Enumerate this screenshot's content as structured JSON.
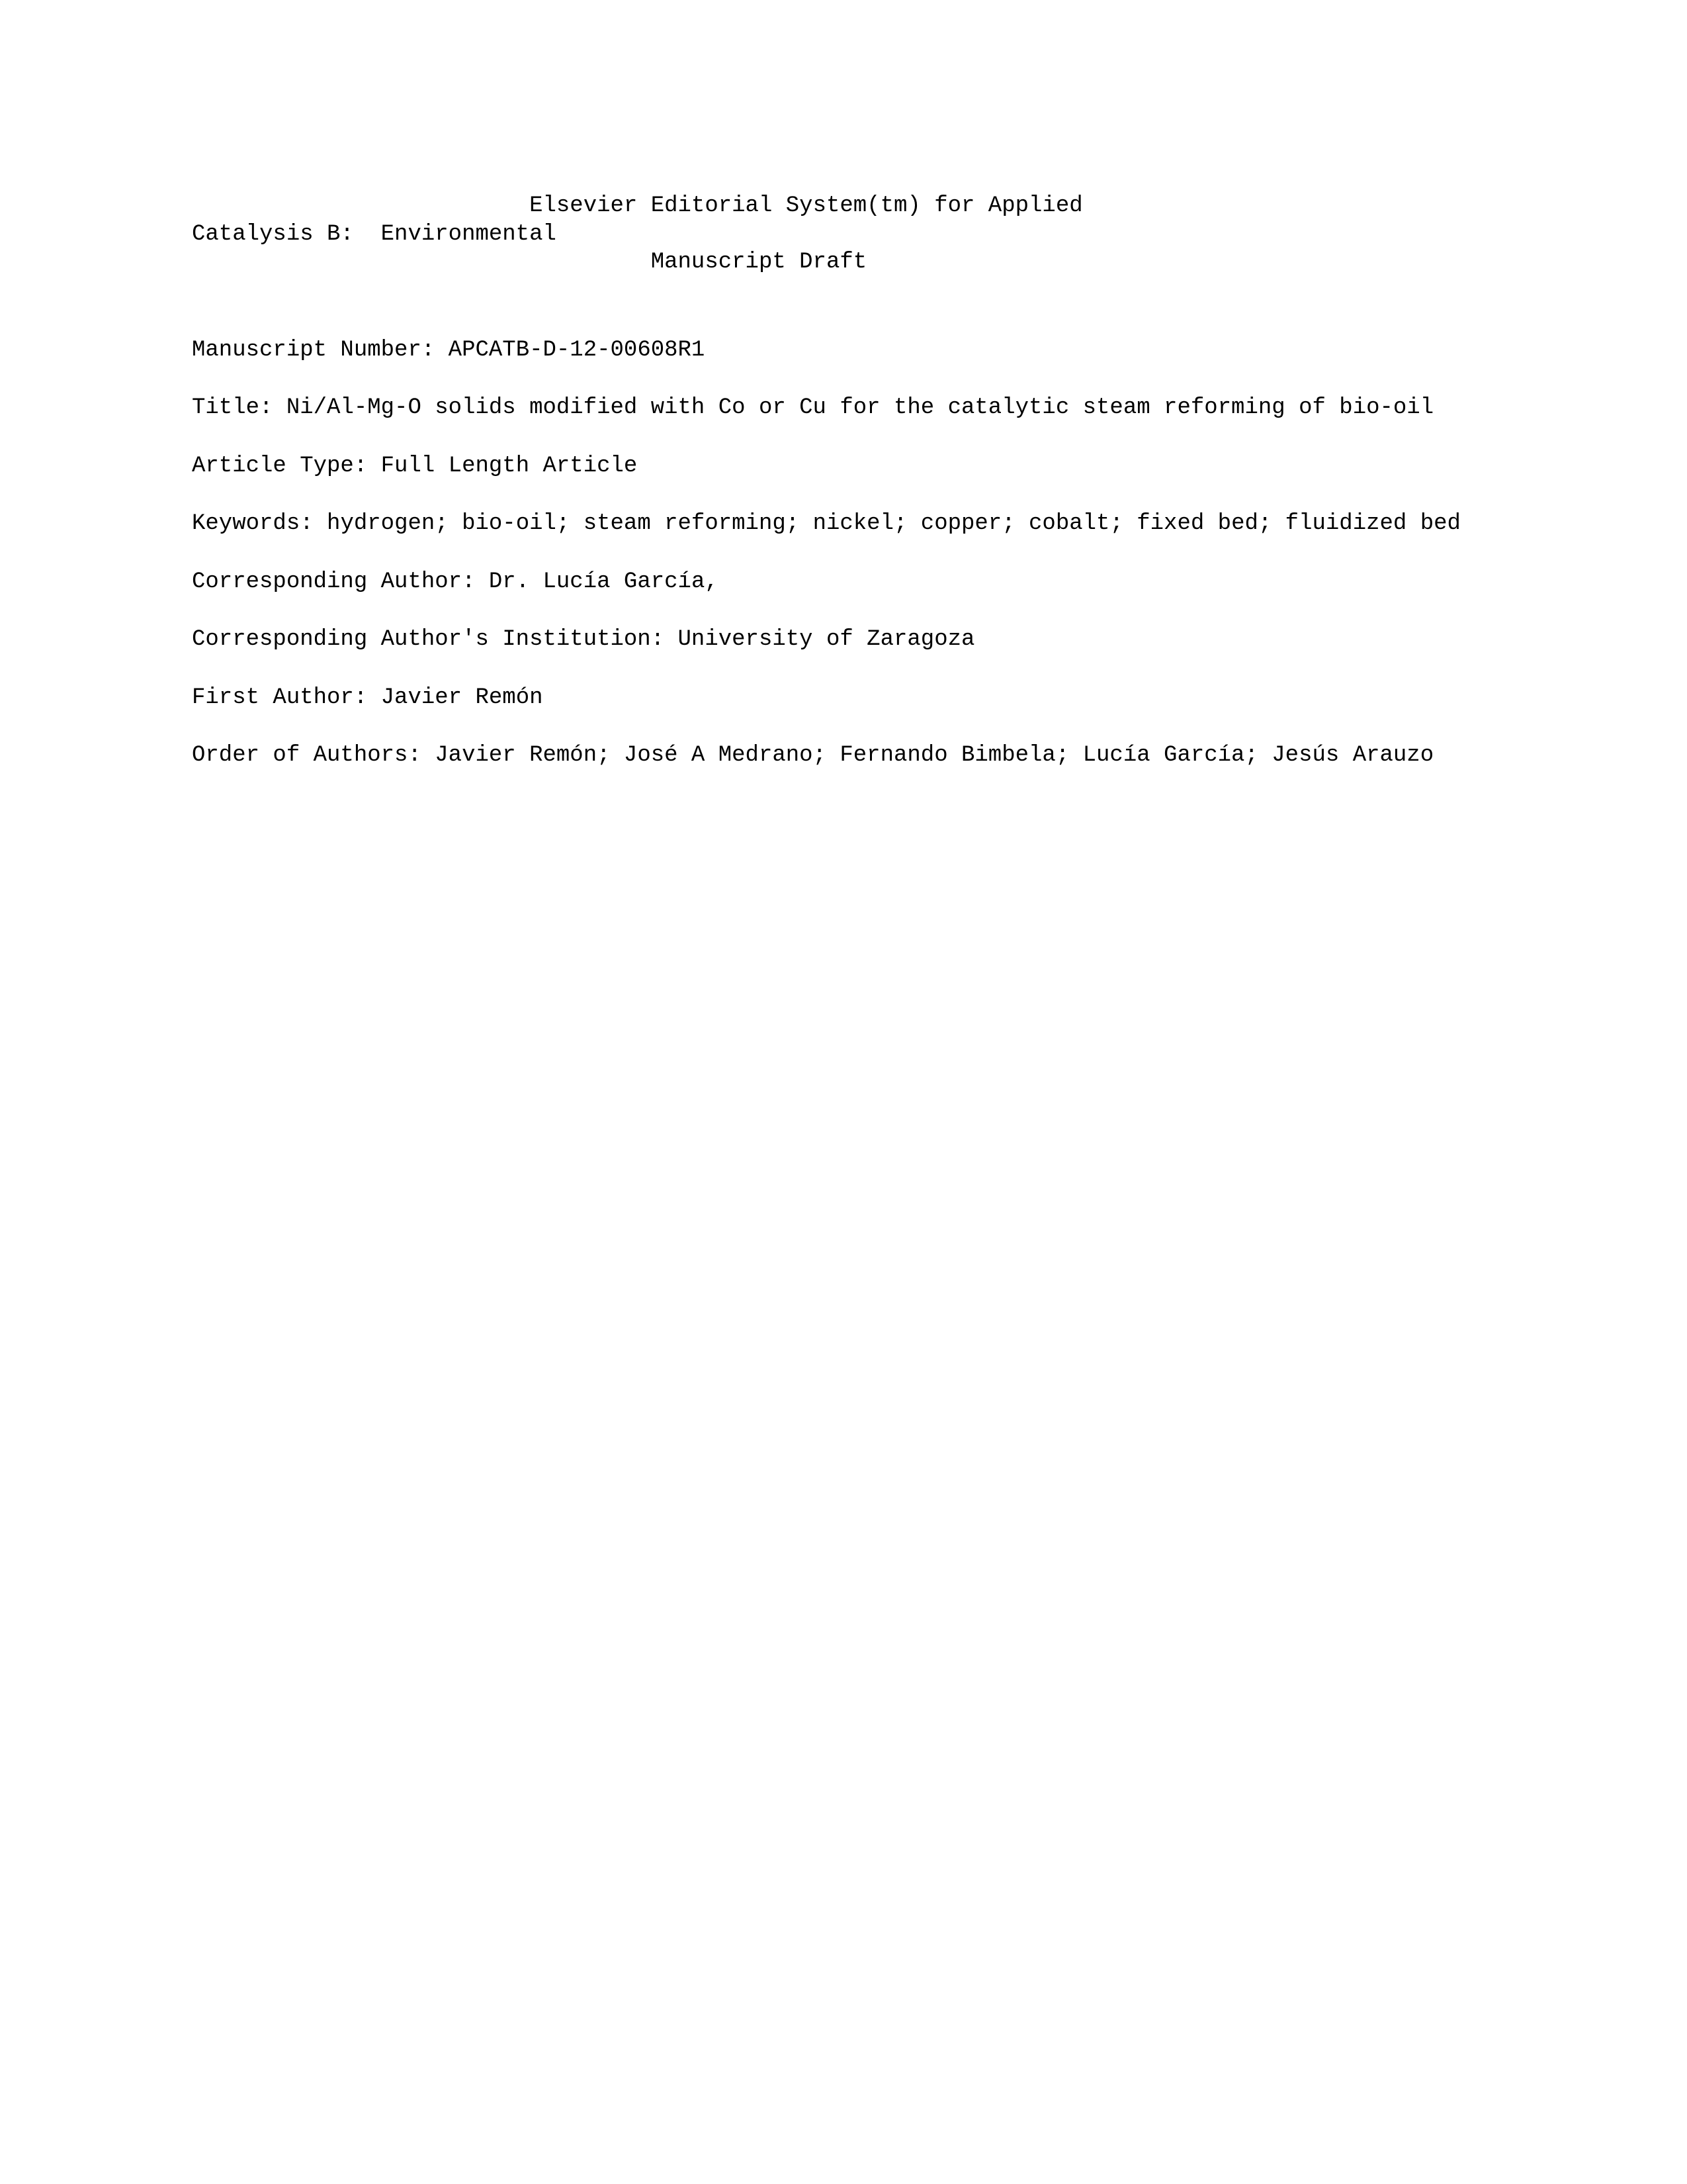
{
  "header": {
    "line1_indent": "                         ",
    "line1_text": "Elsevier Editorial System(tm) for Applied",
    "line2_text": "Catalysis B:  Environmental",
    "line3_indent": "                                  ",
    "line3_text": "Manuscript Draft"
  },
  "fields": {
    "manuscript_number": {
      "label": "Manuscript Number:",
      "value": "APCATB-D-12-00608R1"
    },
    "title": {
      "label": "Title:",
      "value": "Ni/Al-Mg-O solids modified with Co or Cu for the catalytic steam reforming of bio-oil"
    },
    "article_type": {
      "label": "Article Type:",
      "value": "Full Length Article"
    },
    "keywords": {
      "label": "Keywords:",
      "value": "hydrogen; bio-oil; steam reforming; nickel; copper; cobalt; fixed bed; fluidized bed"
    },
    "corresponding_author": {
      "label": "Corresponding Author:",
      "value": "Dr. Lucía García,"
    },
    "institution": {
      "label": "Corresponding Author's Institution:",
      "value": "University of Zaragoza"
    },
    "first_author": {
      "label": "First Author:",
      "value": "Javier Remón"
    },
    "order_authors": {
      "label": "Order of Authors:",
      "value": "Javier Remón; José A Medrano; Fernando Bimbela; Lucía García; Jesús Arauzo"
    }
  }
}
